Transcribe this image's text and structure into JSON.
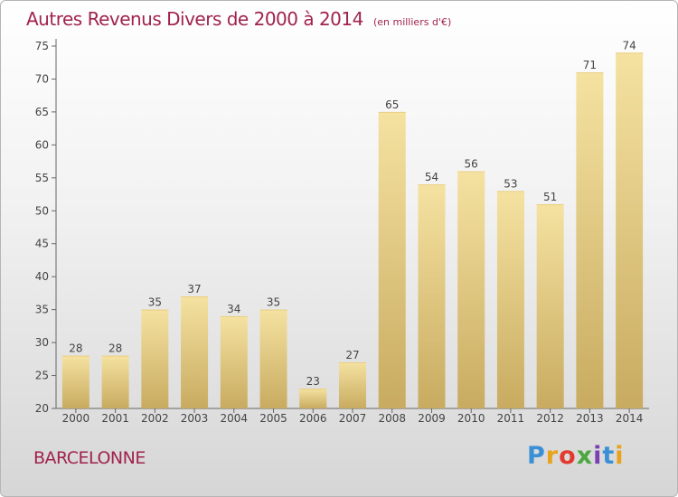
{
  "title": "Autres Revenus Divers de 2000 à 2014",
  "subtitle": "(en milliers d'€)",
  "city": "BARCELONNE",
  "logo": {
    "text": "Proxiti",
    "colors": [
      "#3a8fd6",
      "#e8a21b",
      "#e43a2e",
      "#4aa83f",
      "#7a3fb0",
      "#3a8fd6",
      "#e8a21b"
    ]
  },
  "colors": {
    "bar_light": "#f5e2a1",
    "bar_dark": "#c8ab60",
    "title": "#a0234e",
    "axis": "#666666"
  },
  "chart_data": {
    "type": "bar",
    "categories": [
      "2000",
      "2001",
      "2002",
      "2003",
      "2004",
      "2005",
      "2006",
      "2007",
      "2008",
      "2009",
      "2010",
      "2011",
      "2012",
      "2013",
      "2014"
    ],
    "values": [
      28,
      28,
      35,
      37,
      34,
      35,
      23,
      27,
      65,
      54,
      56,
      53,
      51,
      71,
      74
    ],
    "ylim": [
      20,
      75
    ],
    "yticks": [
      20,
      25,
      30,
      35,
      40,
      45,
      50,
      55,
      60,
      65,
      70,
      75
    ],
    "grid": false,
    "legend": "none"
  }
}
